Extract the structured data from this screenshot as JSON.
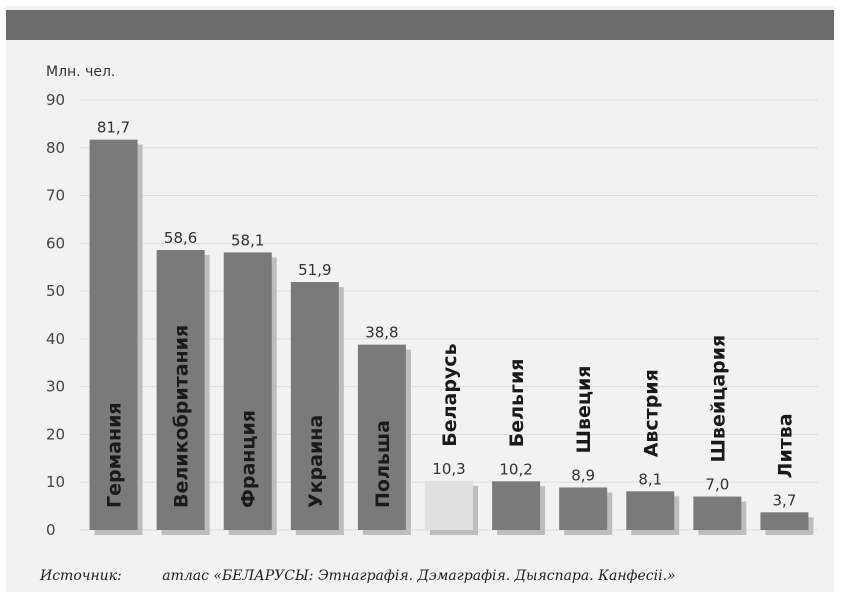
{
  "chart_data": {
    "type": "bar",
    "ylabel": "Млн. чел.",
    "ylim": [
      0,
      90
    ],
    "yticks": [
      0,
      10,
      20,
      30,
      40,
      50,
      60,
      70,
      80,
      90
    ],
    "grid": true,
    "categories": [
      "Германия",
      "Великобритания",
      "Франция",
      "Украина",
      "Польша",
      "Беларусь",
      "Бельгия",
      "Швеция",
      "Австрия",
      "Швейцария",
      "Литва"
    ],
    "values": [
      81.7,
      58.6,
      58.1,
      51.9,
      38.8,
      10.3,
      10.2,
      8.9,
      8.1,
      7.0,
      3.7
    ],
    "value_labels": [
      "81,7",
      "58,6",
      "58,1",
      "51,9",
      "38,8",
      "10,3",
      "10,2",
      "8,9",
      "8,1",
      "7,0",
      "3,7"
    ],
    "colors": {
      "bar": "#7a7a7a",
      "highlight": "#e0e0e0",
      "highlight_category": "Беларусь",
      "shadow": "#bdbdbd",
      "top_bar": "#6c6c6c",
      "background": "#f2f2f2"
    }
  },
  "source": {
    "label": "Источник:",
    "text": "атлас «БЕЛАРУСЫ: Этнаграфія. Дэмаграфія. Дыяспара. Канфесіі.»"
  }
}
